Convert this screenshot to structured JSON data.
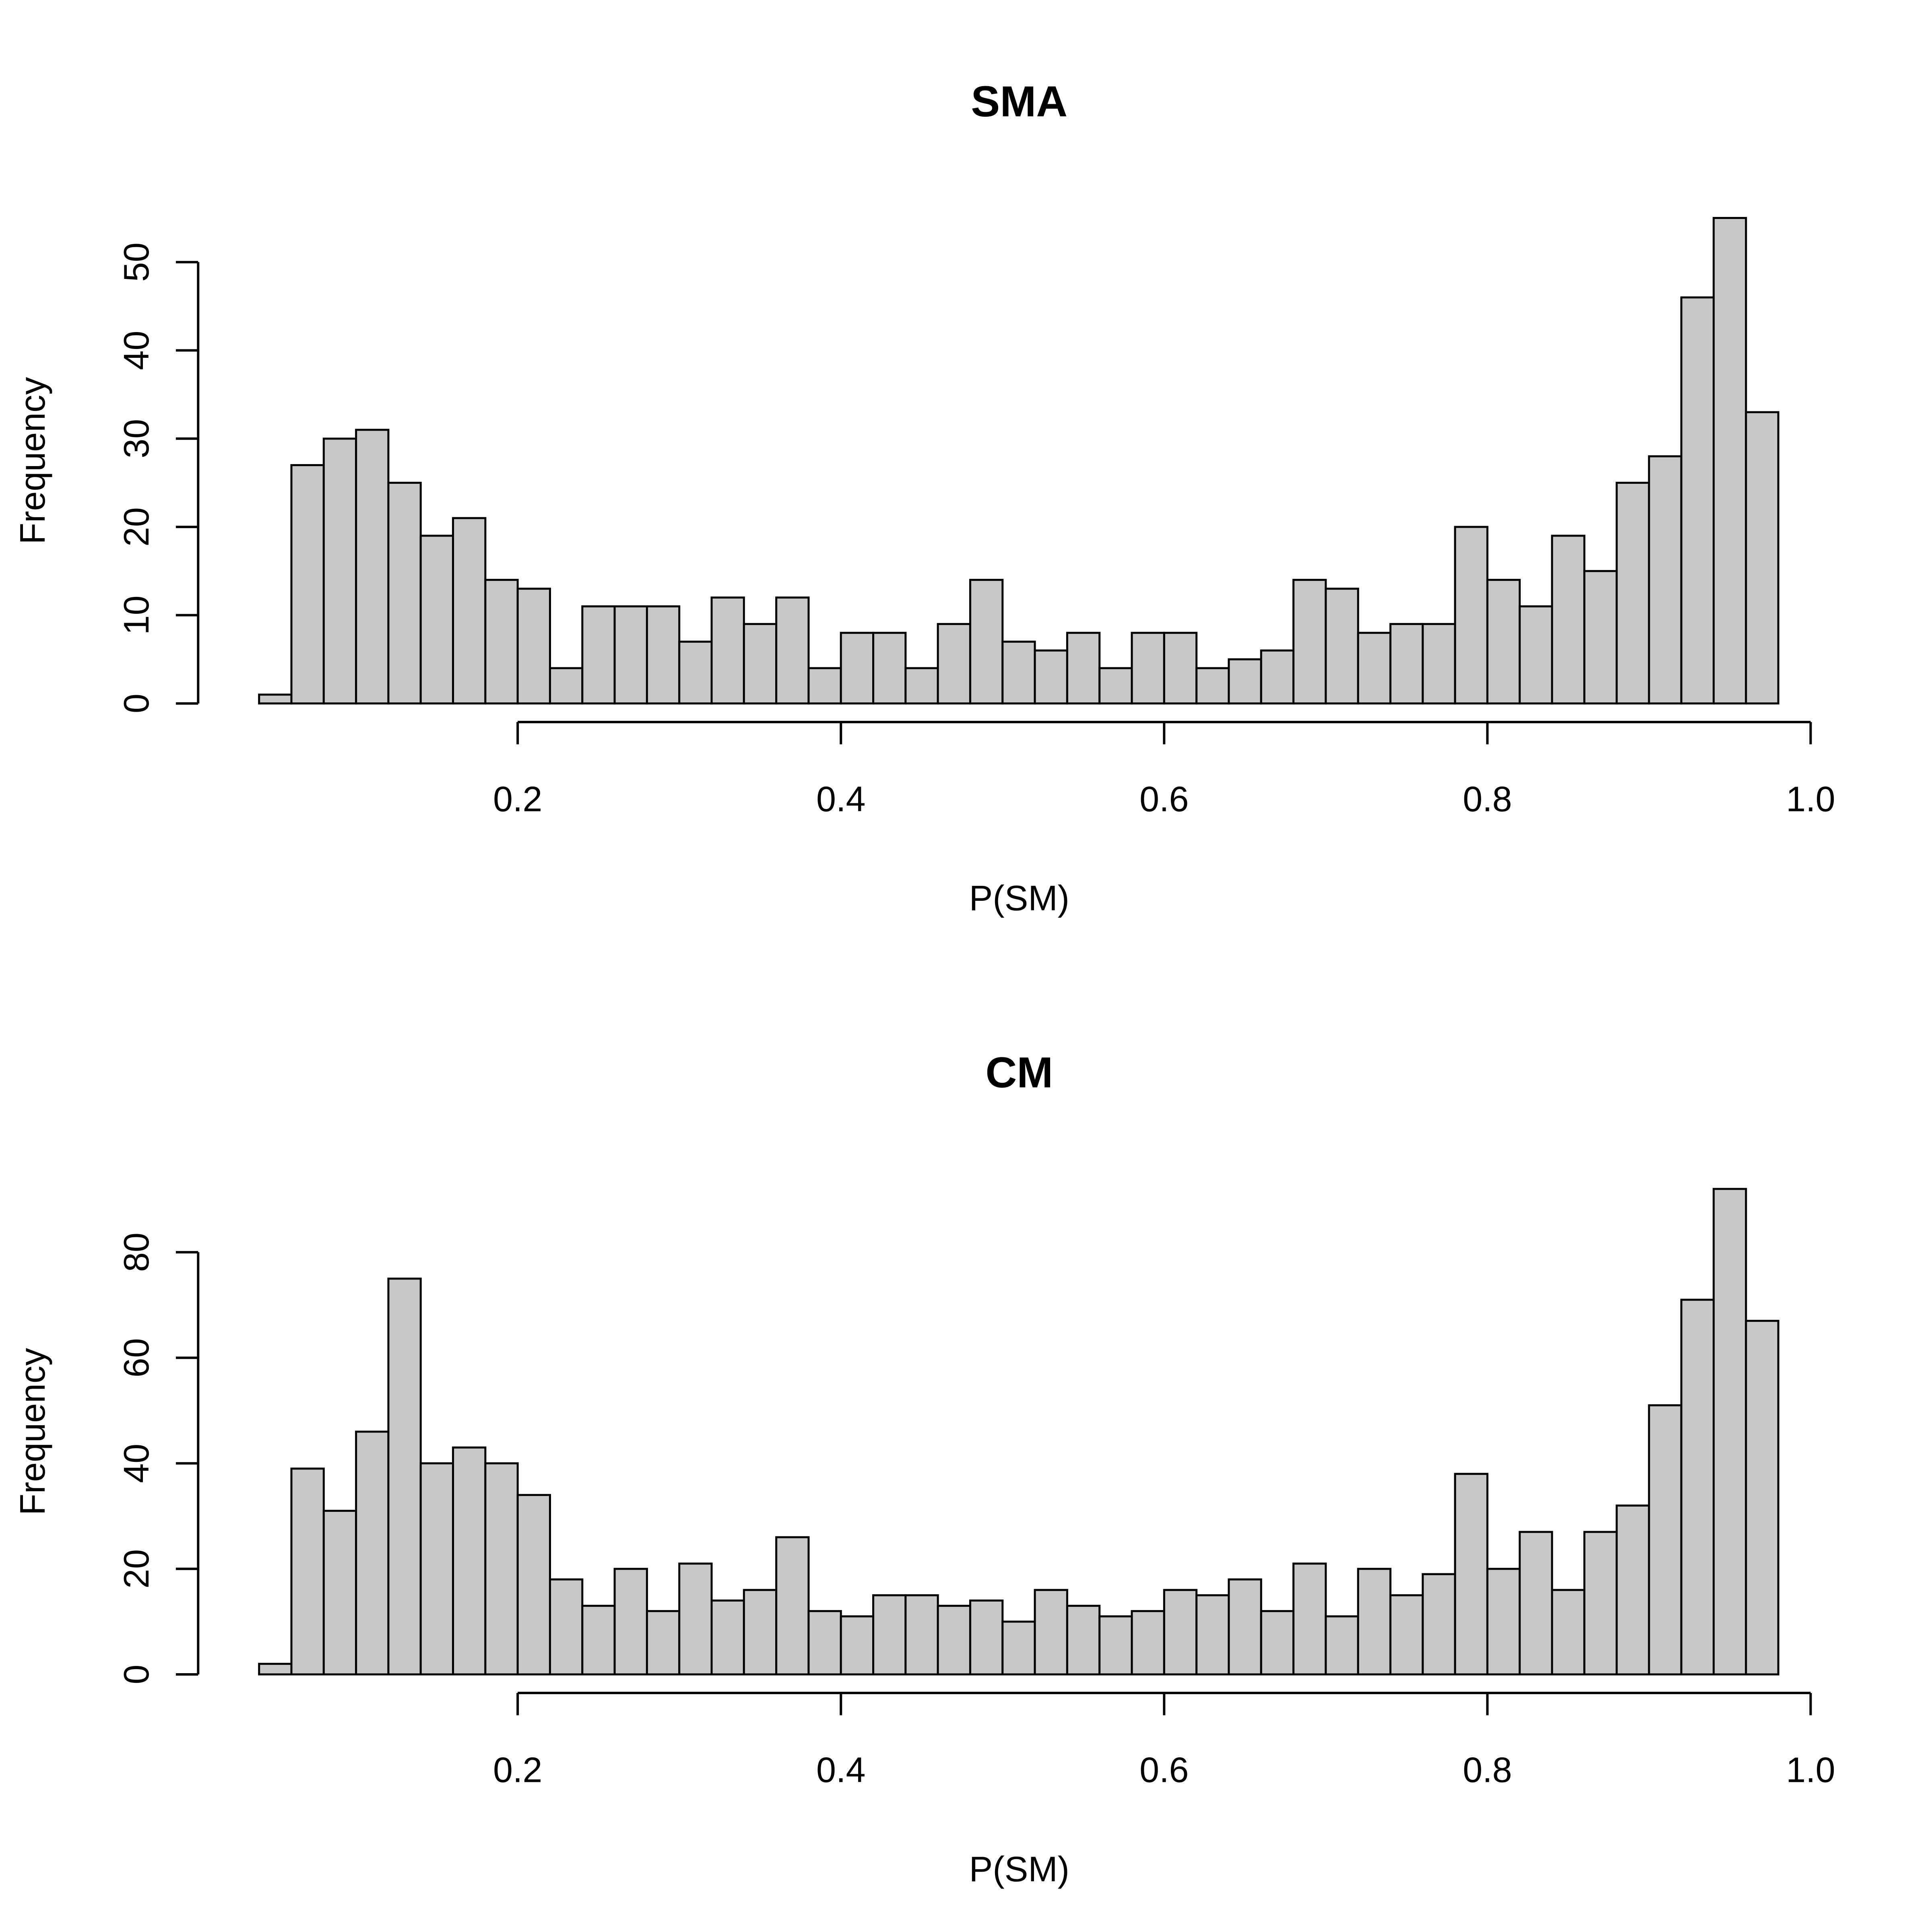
{
  "chart_data": [
    {
      "type": "bar",
      "title": "SMA",
      "xlabel": "P(SM)",
      "ylabel": "Frequency",
      "bin_start": 0.04,
      "bin_width": 0.02,
      "values": [
        1,
        27,
        30,
        31,
        25,
        19,
        21,
        14,
        13,
        4,
        11,
        11,
        11,
        7,
        12,
        9,
        12,
        4,
        8,
        8,
        4,
        9,
        14,
        7,
        6,
        8,
        4,
        8,
        8,
        4,
        5,
        6,
        14,
        13,
        8,
        9,
        9,
        20,
        14,
        11,
        19,
        15,
        25,
        28,
        46,
        55,
        33
      ],
      "xlim": [
        0.04,
        1.0
      ],
      "ylim": [
        0,
        55
      ],
      "x_ticks": [
        0.2,
        0.4,
        0.6,
        0.8,
        1.0
      ],
      "x_tick_labels": [
        "0.2",
        "0.4",
        "0.6",
        "0.8",
        "1.0"
      ],
      "y_ticks": [
        0,
        10,
        20,
        30,
        40,
        50
      ],
      "y_tick_labels": [
        "0",
        "10",
        "20",
        "30",
        "40",
        "50"
      ],
      "bar_color": "#c8c8c8",
      "grid": false
    },
    {
      "type": "bar",
      "title": "CM",
      "xlabel": "P(SM)",
      "ylabel": "Frequency",
      "bin_start": 0.04,
      "bin_width": 0.02,
      "values": [
        2,
        39,
        31,
        46,
        75,
        40,
        43,
        40,
        34,
        18,
        13,
        20,
        12,
        21,
        14,
        16,
        26,
        12,
        11,
        15,
        15,
        13,
        14,
        10,
        16,
        13,
        11,
        12,
        16,
        15,
        18,
        12,
        21,
        11,
        20,
        15,
        19,
        38,
        20,
        27,
        16,
        27,
        32,
        51,
        71,
        92,
        67
      ],
      "xlim": [
        0.04,
        1.0
      ],
      "ylim": [
        0,
        92
      ],
      "x_ticks": [
        0.2,
        0.4,
        0.6,
        0.8,
        1.0
      ],
      "x_tick_labels": [
        "0.2",
        "0.4",
        "0.6",
        "0.8",
        "1.0"
      ],
      "y_ticks": [
        0,
        20,
        40,
        60,
        80
      ],
      "y_tick_labels": [
        "0",
        "20",
        "40",
        "60",
        "80"
      ],
      "bar_color": "#c8c8c8",
      "grid": false
    }
  ]
}
